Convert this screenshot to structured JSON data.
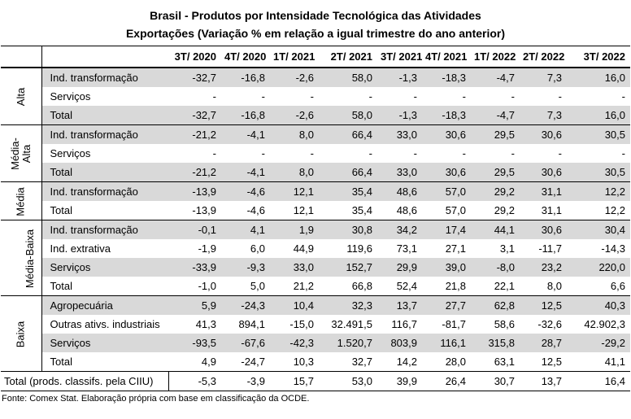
{
  "title": {
    "line1": "Brasil - Produtos por Intensidade Tecnológica das Atividades",
    "line2": "Exportações (Variação % em relação a igual trimestre do ano anterior)"
  },
  "columns": [
    "3T/ 2020",
    "4T/ 2020",
    "1T/ 2021",
    "2T/ 2021",
    "3T/ 2021",
    "4T/ 2021",
    "1T/ 2022",
    "2T/ 2022",
    "3T/ 2022"
  ],
  "groups": [
    {
      "name": "Alta",
      "name_lines": [
        "Alta"
      ],
      "rows": [
        {
          "label": "Ind. transformação",
          "values": [
            "-32,7",
            "-16,8",
            "-2,6",
            "58,0",
            "-1,3",
            "-18,3",
            "-4,7",
            "7,3",
            "16,0"
          ]
        },
        {
          "label": "Serviços",
          "values": [
            "-",
            "-",
            "-",
            "-",
            "-",
            "-",
            "-",
            "-",
            "-"
          ]
        },
        {
          "label": "Total",
          "values": [
            "-32,7",
            "-16,8",
            "-2,6",
            "58,0",
            "-1,3",
            "-18,3",
            "-4,7",
            "7,3",
            "16,0"
          ]
        }
      ]
    },
    {
      "name": "Média-Alta",
      "name_lines": [
        "Média-",
        "Alta"
      ],
      "rows": [
        {
          "label": "Ind. transformação",
          "values": [
            "-21,2",
            "-4,1",
            "8,0",
            "66,4",
            "33,0",
            "30,6",
            "29,5",
            "30,6",
            "30,5"
          ]
        },
        {
          "label": "Serviços",
          "values": [
            "-",
            "-",
            "-",
            "-",
            "-",
            "-",
            "-",
            "-",
            "-"
          ]
        },
        {
          "label": "Total",
          "values": [
            "-21,2",
            "-4,1",
            "8,0",
            "66,4",
            "33,0",
            "30,6",
            "29,5",
            "30,6",
            "30,5"
          ]
        }
      ]
    },
    {
      "name": "Média",
      "name_lines": [
        "Média"
      ],
      "rows": [
        {
          "label": "Ind. transformação",
          "values": [
            "-13,9",
            "-4,6",
            "12,1",
            "35,4",
            "48,6",
            "57,0",
            "29,2",
            "31,1",
            "12,2"
          ]
        },
        {
          "label": "Total",
          "values": [
            "-13,9",
            "-4,6",
            "12,1",
            "35,4",
            "48,6",
            "57,0",
            "29,2",
            "31,1",
            "12,2"
          ]
        }
      ]
    },
    {
      "name": "Média-Baixa",
      "name_lines": [
        "Média-Baixa"
      ],
      "rows": [
        {
          "label": "Ind. transformação",
          "values": [
            "-0,1",
            "4,1",
            "1,9",
            "30,8",
            "34,2",
            "17,4",
            "44,1",
            "30,6",
            "30,4"
          ]
        },
        {
          "label": "Ind. extrativa",
          "values": [
            "-1,9",
            "6,0",
            "44,9",
            "119,6",
            "73,1",
            "27,1",
            "3,1",
            "-11,7",
            "-14,3"
          ]
        },
        {
          "label": "Serviços",
          "values": [
            "-33,9",
            "-9,3",
            "33,0",
            "152,7",
            "29,9",
            "39,0",
            "-8,0",
            "23,2",
            "220,0"
          ]
        },
        {
          "label": "Total",
          "values": [
            "-1,0",
            "5,0",
            "21,2",
            "66,8",
            "52,4",
            "21,8",
            "22,1",
            "8,0",
            "6,6"
          ]
        }
      ]
    },
    {
      "name": "Baixa",
      "name_lines": [
        "Baixa"
      ],
      "rows": [
        {
          "label": "Agropecuária",
          "values": [
            "5,9",
            "-24,3",
            "10,4",
            "32,3",
            "13,7",
            "27,7",
            "62,8",
            "12,5",
            "40,3"
          ]
        },
        {
          "label": "Outras ativs. industriais",
          "values": [
            "41,3",
            "894,1",
            "-15,0",
            "32.491,5",
            "116,7",
            "-81,7",
            "58,6",
            "-32,6",
            "42.902,3"
          ]
        },
        {
          "label": "Serviços",
          "values": [
            "-93,5",
            "-67,6",
            "-42,3",
            "1.520,7",
            "803,9",
            "116,1",
            "315,8",
            "28,7",
            "-29,2"
          ]
        },
        {
          "label": "Total",
          "values": [
            "4,9",
            "-24,7",
            "10,3",
            "32,7",
            "14,2",
            "28,0",
            "63,1",
            "12,5",
            "41,1"
          ]
        }
      ]
    }
  ],
  "total_row": {
    "label": "Total (prods. classifs. pela CIIU)",
    "values": [
      "-5,3",
      "-3,9",
      "15,7",
      "53,0",
      "39,9",
      "26,4",
      "30,7",
      "13,7",
      "16,4"
    ]
  },
  "source": "Fonte: Comex Stat. Elaboração própria com base em classificação da OCDE."
}
